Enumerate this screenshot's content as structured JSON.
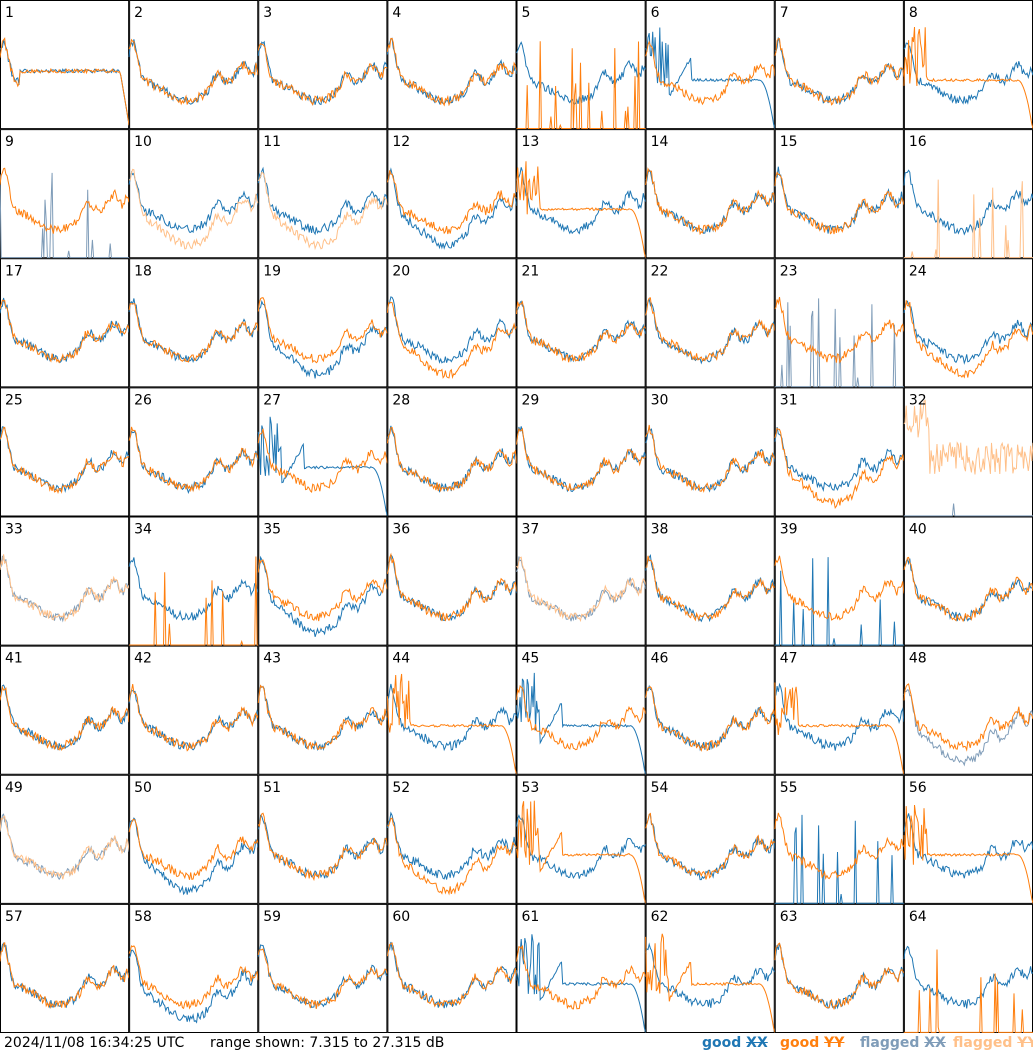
{
  "footer": {
    "timestamp": "2024/11/08 16:34:25 UTC",
    "range_text": "range shown: 7.315 to 27.315 dB"
  },
  "legend": [
    {
      "prefix": "good ",
      "pol": "XX",
      "color": "#1f77b4"
    },
    {
      "prefix": "good ",
      "pol": "YY",
      "color": "#ff7f0e"
    },
    {
      "prefix": "flagged ",
      "pol": "XX",
      "color": "#7f9cb8"
    },
    {
      "prefix": "flagged ",
      "pol": "YY",
      "color": "#ffc089"
    }
  ],
  "chart_data": {
    "type": "line",
    "grid": "8x8 small multiples",
    "xlabel": "",
    "ylabel": "",
    "ylim_db": [
      7.315,
      27.315
    ],
    "panels": [
      {
        "id": 1,
        "xx": "good",
        "yy": "good",
        "shape": "flat_decay"
      },
      {
        "id": 2,
        "xx": "good",
        "yy": "good",
        "shape": "normal"
      },
      {
        "id": 3,
        "xx": "good",
        "yy": "good",
        "shape": "normal"
      },
      {
        "id": 4,
        "xx": "good",
        "yy": "good",
        "shape": "normal"
      },
      {
        "id": 5,
        "xx": "good",
        "yy": "good",
        "shape": "spikes_yy"
      },
      {
        "id": 6,
        "xx": "good",
        "yy": "good",
        "shape": "dip_decay_xx"
      },
      {
        "id": 7,
        "xx": "good",
        "yy": "good",
        "shape": "normal"
      },
      {
        "id": 8,
        "xx": "good",
        "yy": "good",
        "shape": "decay_yy"
      },
      {
        "id": 9,
        "xx": "flagged",
        "yy": "good",
        "shape": "spikes_xx"
      },
      {
        "id": 10,
        "xx": "good",
        "yy": "flagged",
        "shape": "split_yy_low"
      },
      {
        "id": 11,
        "xx": "good",
        "yy": "flagged",
        "shape": "split_yy_low"
      },
      {
        "id": 12,
        "xx": "good",
        "yy": "good",
        "shape": "split_xx_low"
      },
      {
        "id": 13,
        "xx": "good",
        "yy": "good",
        "shape": "decay_yy"
      },
      {
        "id": 14,
        "xx": "good",
        "yy": "good",
        "shape": "normal"
      },
      {
        "id": 15,
        "xx": "good",
        "yy": "good",
        "shape": "normal"
      },
      {
        "id": 16,
        "xx": "good",
        "yy": "flagged",
        "shape": "spikes_yy"
      },
      {
        "id": 17,
        "xx": "good",
        "yy": "good",
        "shape": "normal"
      },
      {
        "id": 18,
        "xx": "good",
        "yy": "good",
        "shape": "normal"
      },
      {
        "id": 19,
        "xx": "good",
        "yy": "good",
        "shape": "split_xx_low"
      },
      {
        "id": 20,
        "xx": "good",
        "yy": "good",
        "shape": "split_yy_low"
      },
      {
        "id": 21,
        "xx": "good",
        "yy": "good",
        "shape": "normal"
      },
      {
        "id": 22,
        "xx": "good",
        "yy": "good",
        "shape": "normal"
      },
      {
        "id": 23,
        "xx": "flagged",
        "yy": "good",
        "shape": "spikes_xx"
      },
      {
        "id": 24,
        "xx": "good",
        "yy": "good",
        "shape": "split_yy_low"
      },
      {
        "id": 25,
        "xx": "good",
        "yy": "good",
        "shape": "normal"
      },
      {
        "id": 26,
        "xx": "good",
        "yy": "good",
        "shape": "normal"
      },
      {
        "id": 27,
        "xx": "good",
        "yy": "good",
        "shape": "dip_decay_xx"
      },
      {
        "id": 28,
        "xx": "good",
        "yy": "good",
        "shape": "normal"
      },
      {
        "id": 29,
        "xx": "good",
        "yy": "good",
        "shape": "normal"
      },
      {
        "id": 30,
        "xx": "good",
        "yy": "good",
        "shape": "normal"
      },
      {
        "id": 31,
        "xx": "good",
        "yy": "good",
        "shape": "split_yy_low"
      },
      {
        "id": 32,
        "xx": "flagged",
        "yy": "flagged",
        "shape": "noisy_yy"
      },
      {
        "id": 33,
        "xx": "flagged",
        "yy": "flagged",
        "shape": "normal"
      },
      {
        "id": 34,
        "xx": "good",
        "yy": "good",
        "shape": "spikes_yy"
      },
      {
        "id": 35,
        "xx": "good",
        "yy": "good",
        "shape": "split_xx_low"
      },
      {
        "id": 36,
        "xx": "good",
        "yy": "good",
        "shape": "normal"
      },
      {
        "id": 37,
        "xx": "flagged",
        "yy": "flagged",
        "shape": "normal"
      },
      {
        "id": 38,
        "xx": "good",
        "yy": "good",
        "shape": "normal"
      },
      {
        "id": 39,
        "xx": "good",
        "yy": "good",
        "shape": "spikes_xx"
      },
      {
        "id": 40,
        "xx": "good",
        "yy": "good",
        "shape": "normal"
      },
      {
        "id": 41,
        "xx": "good",
        "yy": "good",
        "shape": "normal"
      },
      {
        "id": 42,
        "xx": "good",
        "yy": "good",
        "shape": "normal"
      },
      {
        "id": 43,
        "xx": "good",
        "yy": "good",
        "shape": "normal"
      },
      {
        "id": 44,
        "xx": "good",
        "yy": "good",
        "shape": "decay_yy"
      },
      {
        "id": 45,
        "xx": "good",
        "yy": "good",
        "shape": "dip_decay_xx"
      },
      {
        "id": 46,
        "xx": "good",
        "yy": "good",
        "shape": "normal"
      },
      {
        "id": 47,
        "xx": "good",
        "yy": "good",
        "shape": "decay_yy"
      },
      {
        "id": 48,
        "xx": "flagged",
        "yy": "good",
        "shape": "split_xx_low"
      },
      {
        "id": 49,
        "xx": "flagged",
        "yy": "flagged",
        "shape": "normal"
      },
      {
        "id": 50,
        "xx": "good",
        "yy": "good",
        "shape": "split_xx_low"
      },
      {
        "id": 51,
        "xx": "good",
        "yy": "good",
        "shape": "normal"
      },
      {
        "id": 52,
        "xx": "good",
        "yy": "good",
        "shape": "split_yy_low"
      },
      {
        "id": 53,
        "xx": "good",
        "yy": "good",
        "shape": "dip_decay_yy"
      },
      {
        "id": 54,
        "xx": "good",
        "yy": "good",
        "shape": "normal"
      },
      {
        "id": 55,
        "xx": "good",
        "yy": "good",
        "shape": "spikes_xx"
      },
      {
        "id": 56,
        "xx": "good",
        "yy": "good",
        "shape": "decay_yy"
      },
      {
        "id": 57,
        "xx": "good",
        "yy": "good",
        "shape": "normal"
      },
      {
        "id": 58,
        "xx": "good",
        "yy": "good",
        "shape": "split_xx_low"
      },
      {
        "id": 59,
        "xx": "good",
        "yy": "good",
        "shape": "normal"
      },
      {
        "id": 60,
        "xx": "good",
        "yy": "good",
        "shape": "normal"
      },
      {
        "id": 61,
        "xx": "good",
        "yy": "good",
        "shape": "dip_decay_xx"
      },
      {
        "id": 62,
        "xx": "good",
        "yy": "good",
        "shape": "dip_decay_yy"
      },
      {
        "id": 63,
        "xx": "good",
        "yy": "good",
        "shape": "normal"
      },
      {
        "id": 64,
        "xx": "good",
        "yy": "good",
        "shape": "spikes_yy"
      }
    ]
  }
}
